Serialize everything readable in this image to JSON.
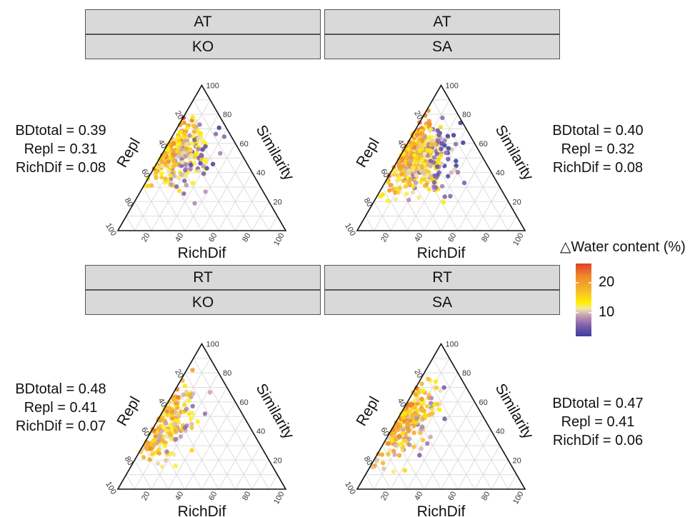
{
  "legend": {
    "title": "Water content (%)",
    "delta_symbol": "△",
    "ticks": [
      {
        "label": "20",
        "value": 20
      },
      {
        "label": "10",
        "value": 10
      }
    ],
    "range": [
      2,
      26
    ],
    "colors": [
      "#3b3fa0",
      "#7b5da8",
      "#c49ab3",
      "#f3e6a5",
      "#fff200",
      "#f5b62d",
      "#f08a2a",
      "#e0402a"
    ]
  },
  "ternary_labels": {
    "left": "Repl",
    "right": "Similarity",
    "bottom": "RichDif",
    "ticks": [
      "20",
      "40",
      "60",
      "80",
      "100"
    ]
  },
  "chart_data": [
    {
      "type": "scatter",
      "panel": "AT-KO",
      "strip_top": "AT",
      "strip_bottom": "KO",
      "stats": {
        "BDtotal": "BDtotal = 0.39",
        "Repl": "Repl = 0.31",
        "RichDif": "RichDif = 0.08"
      },
      "axes": {
        "left": "Repl",
        "right": "Similarity",
        "bottom": "RichDif"
      },
      "cloud": {
        "similarity_center": 61,
        "repl_center": 31,
        "similarity_spread": 17,
        "repl_spread": 13,
        "richdif_max": 28,
        "n": 260
      }
    },
    {
      "type": "scatter",
      "panel": "AT-SA",
      "strip_top": "AT",
      "strip_bottom": "SA",
      "stats": {
        "BDtotal": "BDtotal = 0.40",
        "Repl": "Repl = 0.32",
        "RichDif": "RichDif = 0.08"
      },
      "axes": {
        "left": "Repl",
        "right": "Similarity",
        "bottom": "RichDif"
      },
      "cloud": {
        "similarity_center": 60,
        "repl_center": 32,
        "similarity_spread": 19,
        "repl_spread": 14,
        "richdif_max": 30,
        "n": 420
      }
    },
    {
      "type": "scatter",
      "panel": "RT-KO",
      "strip_top": "RT",
      "strip_bottom": "KO",
      "stats": {
        "BDtotal": "BDtotal = 0.48",
        "Repl": "Repl = 0.41",
        "RichDif": "RichDif = 0.07"
      },
      "axes": {
        "left": "Repl",
        "right": "Similarity",
        "bottom": "RichDif"
      },
      "cloud": {
        "similarity_center": 55,
        "repl_center": 41,
        "similarity_spread": 20,
        "repl_spread": 19,
        "richdif_max": 14,
        "n": 190
      }
    },
    {
      "type": "scatter",
      "panel": "RT-SA",
      "strip_top": "RT",
      "strip_bottom": "SA",
      "stats": {
        "BDtotal": "BDtotal = 0.47",
        "Repl": "Repl = 0.41",
        "RichDif": "RichDif = 0.06"
      },
      "axes": {
        "left": "Repl",
        "right": "Similarity",
        "bottom": "RichDif"
      },
      "cloud": {
        "similarity_center": 56,
        "repl_center": 41,
        "similarity_spread": 20,
        "repl_spread": 19,
        "richdif_max": 14,
        "n": 220
      }
    }
  ]
}
